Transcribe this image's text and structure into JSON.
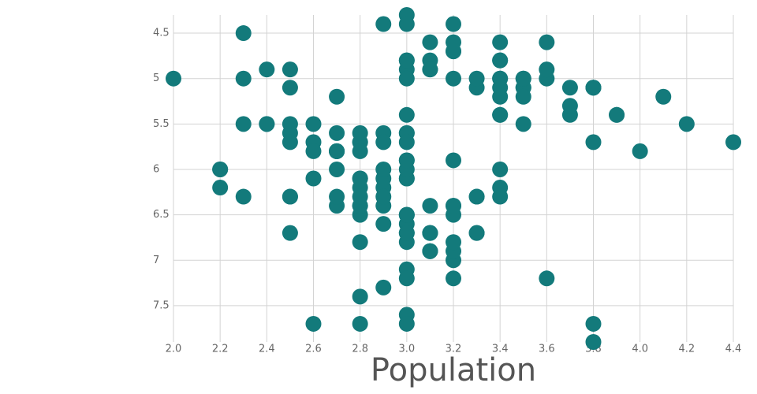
{
  "chart_data": {
    "type": "scatter",
    "x_label": "Population",
    "color": "#137a7b",
    "grid": true,
    "y_reversed": true,
    "xlim": [
      2.0,
      4.4
    ],
    "ylim": [
      4.3,
      7.9
    ],
    "xticks": [
      {
        "value": 2.0,
        "label": "2.0"
      },
      2.2,
      2.4,
      2.6,
      2.8,
      {
        "value": 3.0,
        "label": "3.0"
      },
      3.2,
      3.4,
      3.6,
      3.8,
      {
        "value": 4.0,
        "label": "4.0"
      },
      4.2,
      4.4
    ],
    "yticks": [
      4.5,
      5,
      5.5,
      6,
      6.5,
      7,
      7.5
    ],
    "x": [
      3.5,
      3.0,
      3.2,
      3.1,
      3.6,
      3.9,
      3.4,
      3.4,
      2.9,
      3.1,
      3.7,
      3.4,
      3.0,
      3.0,
      4.0,
      4.4,
      3.9,
      3.5,
      3.8,
      3.8,
      3.4,
      3.7,
      3.6,
      3.3,
      3.4,
      3.0,
      3.4,
      3.5,
      3.4,
      3.2,
      3.1,
      3.4,
      4.1,
      4.2,
      3.1,
      3.2,
      3.5,
      3.6,
      3.0,
      3.4,
      3.5,
      2.3,
      3.2,
      3.5,
      3.8,
      3.0,
      3.8,
      3.2,
      3.7,
      3.3,
      3.2,
      3.2,
      3.1,
      2.3,
      2.8,
      2.8,
      3.3,
      2.4,
      2.9,
      2.7,
      2.0,
      3.0,
      2.2,
      2.9,
      2.9,
      3.1,
      3.0,
      2.7,
      2.2,
      2.5,
      3.2,
      2.8,
      2.5,
      2.8,
      2.9,
      3.0,
      2.8,
      3.0,
      2.9,
      2.6,
      2.4,
      2.4,
      2.7,
      2.7,
      3.0,
      3.4,
      3.1,
      2.3,
      3.0,
      2.5,
      2.6,
      3.0,
      2.6,
      2.3,
      2.7,
      3.0,
      2.9,
      2.9,
      2.5,
      2.8,
      3.3,
      2.7,
      3.0,
      2.9,
      3.0,
      3.0,
      2.5,
      2.9,
      2.5,
      3.6,
      3.2,
      2.7,
      3.0,
      2.5,
      2.8,
      3.2,
      3.0,
      3.8,
      2.6,
      2.2,
      3.2,
      2.8,
      2.8,
      2.7,
      3.3,
      3.2,
      2.8,
      3.0,
      2.8,
      3.0,
      2.8,
      3.8,
      2.8,
      2.8,
      2.6,
      3.0,
      3.4,
      3.1,
      3.0,
      3.1,
      3.1,
      3.1,
      2.7,
      3.2,
      3.3,
      3.0,
      2.5,
      3.0,
      3.4,
      3.0
    ],
    "values": [
      5.1,
      4.9,
      4.7,
      4.6,
      5.0,
      5.4,
      4.6,
      5.0,
      4.4,
      4.9,
      5.4,
      4.8,
      4.8,
      4.3,
      5.8,
      5.7,
      5.4,
      5.1,
      5.7,
      5.1,
      5.4,
      5.1,
      4.6,
      5.1,
      4.8,
      5.0,
      5.0,
      5.2,
      5.2,
      4.7,
      4.8,
      5.4,
      5.2,
      5.5,
      4.9,
      5.0,
      5.5,
      4.9,
      4.4,
      5.1,
      5.0,
      4.5,
      4.4,
      5.0,
      5.1,
      4.8,
      5.1,
      4.6,
      5.3,
      5.0,
      7.0,
      6.4,
      6.9,
      5.5,
      6.5,
      5.7,
      6.3,
      4.9,
      6.6,
      5.2,
      5.0,
      5.9,
      6.0,
      6.1,
      5.6,
      6.7,
      5.6,
      5.8,
      6.2,
      5.6,
      5.9,
      6.1,
      6.3,
      6.1,
      6.4,
      6.6,
      6.8,
      6.7,
      6.0,
      5.7,
      5.5,
      5.5,
      5.8,
      6.0,
      5.4,
      6.0,
      6.7,
      6.3,
      5.6,
      5.5,
      5.5,
      6.1,
      5.8,
      5.0,
      5.6,
      5.7,
      5.7,
      6.2,
      5.1,
      5.7,
      6.3,
      5.8,
      7.1,
      6.3,
      6.5,
      7.6,
      4.9,
      7.3,
      6.7,
      7.2,
      6.5,
      6.4,
      6.8,
      5.7,
      5.8,
      6.4,
      6.5,
      7.7,
      7.7,
      6.0,
      6.9,
      5.6,
      7.7,
      6.3,
      6.7,
      7.2,
      6.2,
      6.1,
      6.4,
      7.2,
      7.4,
      7.9,
      6.4,
      6.3,
      6.1,
      7.7,
      6.3,
      6.4,
      6.0,
      6.9,
      6.7,
      6.9,
      5.8,
      6.8,
      6.7,
      6.7,
      6.3,
      6.5,
      6.2,
      5.9
    ]
  }
}
